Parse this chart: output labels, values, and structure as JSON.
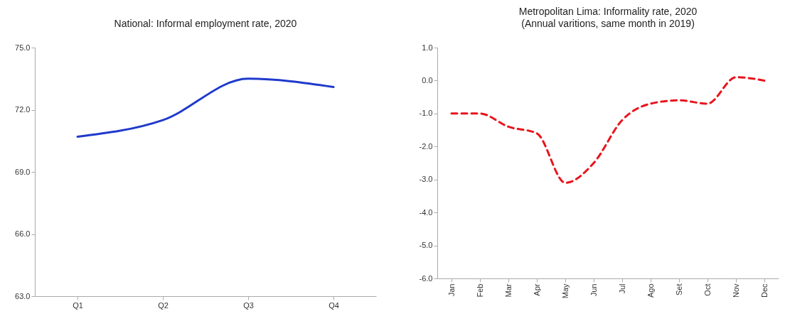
{
  "chart_data": [
    {
      "type": "line",
      "title": "National: Informal employment rate, 2020",
      "categories": [
        "Q1",
        "Q2",
        "Q3",
        "Q4"
      ],
      "series": [
        {
          "color": "#1f3acc",
          "values": [
            70.7,
            71.5,
            73.5,
            73.1
          ]
        }
      ],
      "ylim": [
        63,
        75
      ],
      "yticks": [
        {
          "value": 63,
          "label": "63.0"
        },
        {
          "value": 66,
          "label": "66.0"
        },
        {
          "value": 69,
          "label": "69.0"
        },
        {
          "value": 72,
          "label": "72.0"
        },
        {
          "value": 75,
          "label": "75.0"
        }
      ],
      "grid": false,
      "line_style": "solid",
      "marker": "none"
    },
    {
      "type": "line",
      "title": "Metropolitan Lima: Informality rate, 2020",
      "subtitle": "(Annual varitions, same month in 2019)",
      "categories": [
        "Jan",
        "Feb",
        "Mar",
        "Apr",
        "May",
        "Jun",
        "Jul",
        "Ago",
        "Set",
        "Oct",
        "Nov",
        "Dec"
      ],
      "series": [
        {
          "color": "#e8141c",
          "values": [
            -1.0,
            -1.0,
            -1.4,
            -1.6,
            -3.1,
            -2.5,
            -1.2,
            -0.7,
            -0.6,
            -0.7,
            0.1,
            0.0
          ]
        }
      ],
      "ylim": [
        -6,
        1
      ],
      "yticks": [
        {
          "value": -6,
          "label": "-6.0"
        },
        {
          "value": -5,
          "label": "-5.0"
        },
        {
          "value": -4,
          "label": "-4.0"
        },
        {
          "value": -3,
          "label": "-3.0"
        },
        {
          "value": -2,
          "label": "-2.0"
        },
        {
          "value": -1,
          "label": "-1.0"
        },
        {
          "value": 0,
          "label": "0.0"
        },
        {
          "value": 1,
          "label": "1.0"
        }
      ],
      "grid": false,
      "line_style": "dashed",
      "marker": "none"
    }
  ]
}
